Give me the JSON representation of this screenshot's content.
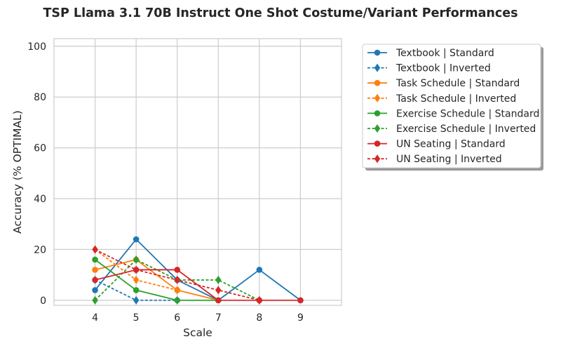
{
  "chart_data": {
    "type": "line",
    "title": "TSP Llama 3.1 70B Instruct One Shot Costume/Variant Performances",
    "xlabel": "Scale",
    "ylabel": "Accuracy (% OPTIMAL)",
    "xlim": [
      3,
      10
    ],
    "ylim": [
      -2,
      103
    ],
    "xticks": [
      4,
      5,
      6,
      7,
      8,
      9
    ],
    "yticks": [
      0,
      20,
      40,
      60,
      80,
      100
    ],
    "grid": true,
    "legend_position": "outside-top-right",
    "series": [
      {
        "name": "Textbook | Standard",
        "color": "#1f77b4",
        "style": "solid",
        "marker": "circle",
        "x": [
          4,
          5,
          6,
          7,
          8,
          9
        ],
        "y": [
          4,
          24,
          8,
          0,
          12,
          0
        ]
      },
      {
        "name": "Textbook | Inverted",
        "color": "#1f77b4",
        "style": "dotted",
        "marker": "diamond",
        "x": [
          4,
          5,
          6
        ],
        "y": [
          8,
          0,
          0
        ]
      },
      {
        "name": "Task Schedule | Standard",
        "color": "#ff7f0e",
        "style": "solid",
        "marker": "circle",
        "x": [
          4,
          5,
          6,
          7
        ],
        "y": [
          12,
          16,
          4,
          0
        ]
      },
      {
        "name": "Task Schedule | Inverted",
        "color": "#ff7f0e",
        "style": "dotted",
        "marker": "diamond",
        "x": [
          4,
          5,
          6
        ],
        "y": [
          20,
          8,
          4
        ]
      },
      {
        "name": "Exercise Schedule | Standard",
        "color": "#2ca02c",
        "style": "solid",
        "marker": "circle",
        "x": [
          4,
          5,
          6,
          7
        ],
        "y": [
          16,
          4,
          0,
          0
        ]
      },
      {
        "name": "Exercise Schedule | Inverted",
        "color": "#2ca02c",
        "style": "dotted",
        "marker": "diamond",
        "x": [
          4,
          5,
          6,
          7,
          8
        ],
        "y": [
          0,
          16,
          8,
          8,
          0
        ]
      },
      {
        "name": "UN Seating | Standard",
        "color": "#d62728",
        "style": "solid",
        "marker": "circle",
        "x": [
          4,
          5,
          6,
          7,
          8,
          9
        ],
        "y": [
          8,
          12,
          12,
          0,
          0,
          0
        ]
      },
      {
        "name": "UN Seating | Inverted",
        "color": "#d62728",
        "style": "dotted",
        "marker": "diamond",
        "x": [
          4,
          5,
          6,
          7,
          8
        ],
        "y": [
          20,
          12,
          8,
          4,
          0
        ]
      }
    ]
  }
}
